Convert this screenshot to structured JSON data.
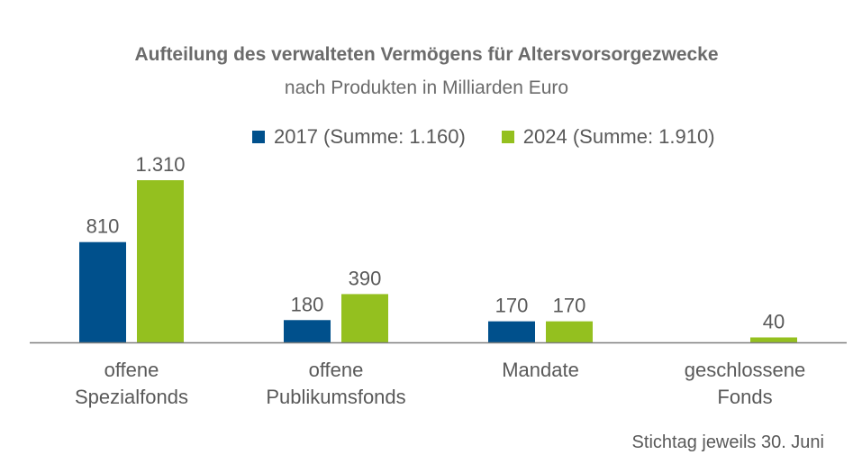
{
  "title": "Aufteilung des verwalteten Vermögens für Altersvorsorgezwecke",
  "subtitle": "nach Produkten in Milliarden Euro",
  "footnote": "Stichtag jeweils 30. Juni",
  "colors": {
    "series_2017": "#00508c",
    "series_2024": "#94c01f",
    "axis": "#7f7f7f",
    "text": "#595959"
  },
  "chart_data": {
    "type": "bar",
    "title": "Aufteilung des verwalteten Vermögens für Altersvorsorgezwecke",
    "subtitle": "nach Produkten in Milliarden Euro",
    "categories": [
      [
        "offene",
        "Spezialfonds"
      ],
      [
        "offene",
        "Publikumsfonds"
      ],
      [
        "Mandate"
      ],
      [
        "geschlossene",
        "Fonds"
      ]
    ],
    "series": [
      {
        "name": "2017 (Summe: 1.160)",
        "values": [
          810,
          180,
          170,
          null
        ],
        "labels": [
          "810",
          "180",
          "170",
          ""
        ]
      },
      {
        "name": "2024 (Summe: 1.910)",
        "values": [
          1310,
          390,
          170,
          40
        ],
        "labels": [
          "1.310",
          "390",
          "170",
          "40"
        ]
      }
    ],
    "legend_position": "top",
    "grid": false
  }
}
